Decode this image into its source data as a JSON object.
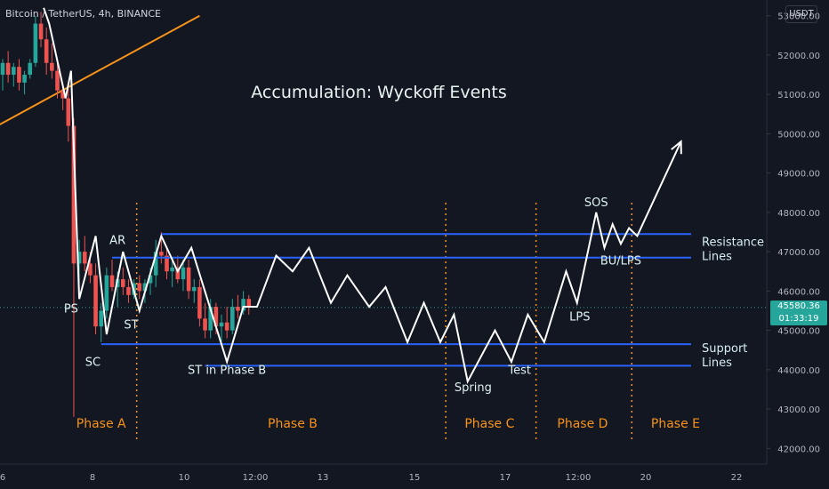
{
  "header": {
    "symbol": "Bitcoin / TetherUS, 4h, BINANCE",
    "currency": "USDT"
  },
  "price_tag": {
    "price": "45580.36",
    "countdown": "01:33:19"
  },
  "colors": {
    "background": "#131722",
    "bull": "#26a69a",
    "bear": "#ef5350",
    "level_line": "#2962ff",
    "trend_line": "#f7931a",
    "phase_text": "#f7931a",
    "wyckoff_path": "#ffffff",
    "axis_text": "#b2b5be"
  },
  "chart_data": {
    "type": "candlestick",
    "title": "Accumulation: Wyckoff Events",
    "y_axis": {
      "ticks": [
        42000,
        43000,
        44000,
        45000,
        46000,
        47000,
        48000,
        49000,
        50000,
        51000,
        52000,
        53000
      ],
      "tick_labels": [
        "42000.00",
        "43000.00",
        "44000.00",
        "45000.00",
        "46000.00",
        "47000.00",
        "48000.00",
        "49000.00",
        "50000.00",
        "51000.00",
        "52000.00",
        "53000.00"
      ],
      "range": [
        41600,
        53400
      ]
    },
    "x_axis": {
      "tick_labels": [
        "6",
        "8",
        "10",
        "12:00",
        "13",
        "15",
        "17",
        "12:00",
        "20",
        "22"
      ]
    },
    "current_price": 45580.36,
    "candles": [
      {
        "o": 51500,
        "h": 51900,
        "l": 51100,
        "c": 51800
      },
      {
        "o": 51800,
        "h": 52100,
        "l": 51300,
        "c": 51500
      },
      {
        "o": 51500,
        "h": 51800,
        "l": 51200,
        "c": 51700
      },
      {
        "o": 51700,
        "h": 51900,
        "l": 51100,
        "c": 51300
      },
      {
        "o": 51300,
        "h": 51600,
        "l": 51000,
        "c": 51500
      },
      {
        "o": 51500,
        "h": 51900,
        "l": 51400,
        "c": 51800
      },
      {
        "o": 51800,
        "h": 53000,
        "l": 51700,
        "c": 52800
      },
      {
        "o": 52800,
        "h": 53100,
        "l": 52200,
        "c": 52400
      },
      {
        "o": 52400,
        "h": 52700,
        "l": 51500,
        "c": 51800
      },
      {
        "o": 51800,
        "h": 52300,
        "l": 51400,
        "c": 51600
      },
      {
        "o": 51600,
        "h": 51900,
        "l": 50900,
        "c": 51100
      },
      {
        "o": 51100,
        "h": 51300,
        "l": 50600,
        "c": 50900
      },
      {
        "o": 50900,
        "h": 51200,
        "l": 49800,
        "c": 50200
      },
      {
        "o": 50200,
        "h": 50400,
        "l": 42800,
        "c": 46700
      },
      {
        "o": 46700,
        "h": 47300,
        "l": 46200,
        "c": 47000
      },
      {
        "o": 47000,
        "h": 47400,
        "l": 46500,
        "c": 46700
      },
      {
        "o": 46700,
        "h": 47000,
        "l": 46200,
        "c": 46400
      },
      {
        "o": 46400,
        "h": 46700,
        "l": 44900,
        "c": 45100
      },
      {
        "o": 45100,
        "h": 45700,
        "l": 44700,
        "c": 45500
      },
      {
        "o": 45500,
        "h": 46600,
        "l": 45300,
        "c": 46400
      },
      {
        "o": 46400,
        "h": 46800,
        "l": 46000,
        "c": 46100
      },
      {
        "o": 46100,
        "h": 46500,
        "l": 45600,
        "c": 46300
      },
      {
        "o": 46300,
        "h": 46600,
        "l": 45900,
        "c": 46100
      },
      {
        "o": 46100,
        "h": 46300,
        "l": 45700,
        "c": 45900
      },
      {
        "o": 45900,
        "h": 46300,
        "l": 45800,
        "c": 46200
      },
      {
        "o": 46200,
        "h": 46400,
        "l": 45800,
        "c": 46000
      },
      {
        "o": 46000,
        "h": 46300,
        "l": 45700,
        "c": 46200
      },
      {
        "o": 46200,
        "h": 46600,
        "l": 45900,
        "c": 46400
      },
      {
        "o": 46400,
        "h": 47300,
        "l": 46100,
        "c": 47000
      },
      {
        "o": 47000,
        "h": 47500,
        "l": 46700,
        "c": 46900
      },
      {
        "o": 46900,
        "h": 47100,
        "l": 46300,
        "c": 46500
      },
      {
        "o": 46500,
        "h": 46800,
        "l": 46100,
        "c": 46600
      },
      {
        "o": 46600,
        "h": 46900,
        "l": 46200,
        "c": 46300
      },
      {
        "o": 46300,
        "h": 46800,
        "l": 46000,
        "c": 46600
      },
      {
        "o": 46600,
        "h": 46800,
        "l": 45800,
        "c": 46000
      },
      {
        "o": 46000,
        "h": 46300,
        "l": 45700,
        "c": 46100
      },
      {
        "o": 46100,
        "h": 46300,
        "l": 45100,
        "c": 45300
      },
      {
        "o": 45300,
        "h": 45700,
        "l": 44800,
        "c": 45000
      },
      {
        "o": 45000,
        "h": 45800,
        "l": 44800,
        "c": 45600
      },
      {
        "o": 45600,
        "h": 45700,
        "l": 44900,
        "c": 45100
      },
      {
        "o": 45100,
        "h": 45400,
        "l": 44700,
        "c": 45200
      },
      {
        "o": 45200,
        "h": 45600,
        "l": 44800,
        "c": 45000
      },
      {
        "o": 45000,
        "h": 45800,
        "l": 44900,
        "c": 45600
      },
      {
        "o": 45600,
        "h": 45900,
        "l": 45300,
        "c": 45500
      },
      {
        "o": 45500,
        "h": 46000,
        "l": 45400,
        "c": 45800
      },
      {
        "o": 45800,
        "h": 45900,
        "l": 45400,
        "c": 45580
      }
    ],
    "trend_line": {
      "start": {
        "candle": -1,
        "price": 50200
      },
      "end": {
        "candle": 36,
        "price": 53000
      }
    },
    "levels": [
      {
        "name": "resistance-upper",
        "price": 47450,
        "from_candle": 29
      },
      {
        "name": "resistance-lower",
        "price": 46850,
        "from_candle": 20
      },
      {
        "name": "support-upper",
        "price": 44650,
        "from_candle": 18
      },
      {
        "name": "support-lower",
        "price": 44100,
        "from_candle": 37
      }
    ],
    "level_labels": [
      {
        "text": "Resistance\nLines",
        "price": 47100
      },
      {
        "text": "Support\nLines",
        "price": 44400
      }
    ],
    "phase_dividers": [
      {
        "candle": 24.5
      },
      {
        "candle": 81
      },
      {
        "candle": 97.5
      },
      {
        "candle": 115
      }
    ],
    "phases": [
      {
        "label": "Phase A",
        "candle": 18
      },
      {
        "label": "Phase B",
        "candle": 53
      },
      {
        "label": "Phase C",
        "candle": 89
      },
      {
        "label": "Phase D",
        "candle": 106
      },
      {
        "label": "Phase E",
        "candle": 123
      }
    ],
    "wyckoff_path": [
      {
        "candle": 7.5,
        "price": 53200
      },
      {
        "candle": 8.5,
        "price": 52800
      },
      {
        "candle": 11.5,
        "price": 50900
      },
      {
        "candle": 12.5,
        "price": 51600
      },
      {
        "candle": 14,
        "price": 45800
      },
      {
        "candle": 17,
        "price": 47400
      },
      {
        "candle": 19,
        "price": 44900
      },
      {
        "candle": 22,
        "price": 47000
      },
      {
        "candle": 25,
        "price": 45500
      },
      {
        "candle": 29,
        "price": 47400
      },
      {
        "candle": 32,
        "price": 46500
      },
      {
        "candle": 34.5,
        "price": 47100
      },
      {
        "candle": 41,
        "price": 44200
      },
      {
        "candle": 44,
        "price": 45600
      },
      {
        "candle": 46.5,
        "price": 45600
      },
      {
        "candle": 50,
        "price": 46900
      },
      {
        "candle": 53,
        "price": 46500
      },
      {
        "candle": 56,
        "price": 47100
      },
      {
        "candle": 60,
        "price": 45700
      },
      {
        "candle": 63,
        "price": 46400
      },
      {
        "candle": 67,
        "price": 45600
      },
      {
        "candle": 70,
        "price": 46100
      },
      {
        "candle": 74,
        "price": 44700
      },
      {
        "candle": 77,
        "price": 45700
      },
      {
        "candle": 80,
        "price": 44700
      },
      {
        "candle": 82.5,
        "price": 45400
      },
      {
        "candle": 85,
        "price": 43700
      },
      {
        "candle": 90,
        "price": 45000
      },
      {
        "candle": 93,
        "price": 44200
      },
      {
        "candle": 96,
        "price": 45400
      },
      {
        "candle": 99,
        "price": 44700
      },
      {
        "candle": 103,
        "price": 46500
      },
      {
        "candle": 105,
        "price": 45700
      },
      {
        "candle": 108.5,
        "price": 48000
      },
      {
        "candle": 110,
        "price": 47100
      },
      {
        "candle": 111.5,
        "price": 47700
      },
      {
        "candle": 113,
        "price": 47200
      },
      {
        "candle": 114.5,
        "price": 47600
      },
      {
        "candle": 116,
        "price": 47400
      },
      {
        "candle": 124,
        "price": 49800
      }
    ],
    "event_labels": [
      {
        "text": "PS",
        "candle": 12.5,
        "price": 45450
      },
      {
        "text": "AR",
        "candle": 21,
        "price": 47200
      },
      {
        "text": "SC",
        "candle": 16.5,
        "price": 44100
      },
      {
        "text": "ST",
        "candle": 23.5,
        "price": 45050
      },
      {
        "text": "ST in Phase B",
        "candle": 41,
        "price": 43900
      },
      {
        "text": "Spring",
        "candle": 86,
        "price": 43450
      },
      {
        "text": "Test",
        "candle": 94.5,
        "price": 43900
      },
      {
        "text": "LPS",
        "candle": 105.5,
        "price": 45250
      },
      {
        "text": "SOS",
        "candle": 108.5,
        "price": 48150
      },
      {
        "text": "BU/LPS",
        "candle": 113,
        "price": 46670
      }
    ]
  }
}
